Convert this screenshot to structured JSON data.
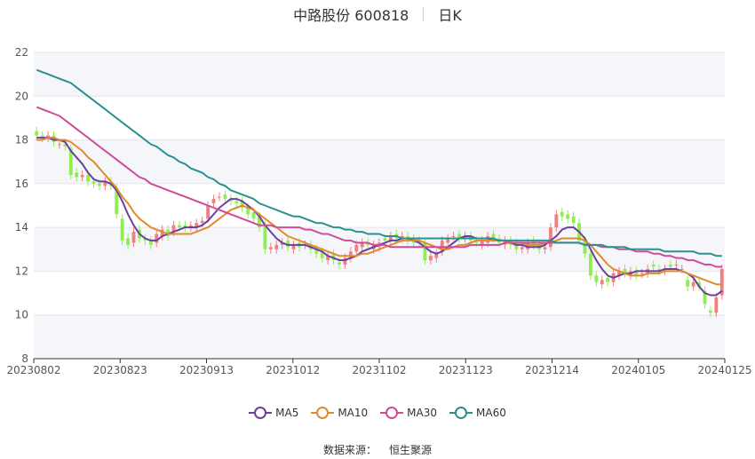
{
  "header": {
    "title": "中路股份 600818",
    "period": "日K"
  },
  "footer": {
    "source_label": "数据来源：",
    "source_name": "恒生聚源"
  },
  "colors": {
    "up": "#f08080",
    "down": "#90ee50",
    "MA5": "#6a3fa0",
    "MA10": "#e08a30",
    "MA30": "#d04a9a",
    "MA60": "#2a9090",
    "grid": "#e6e6e6",
    "band": "#f5f6fa"
  },
  "chart_data": {
    "type": "candlestick",
    "ylim": [
      8,
      22
    ],
    "yticks": [
      8,
      10,
      12,
      14,
      16,
      18,
      20,
      22
    ],
    "xticks": [
      "20230802",
      "20230823",
      "20230913",
      "20231012",
      "20231102",
      "20231123",
      "20231214",
      "20240105",
      "20240125"
    ],
    "xtick_index": [
      0,
      15,
      30,
      45,
      60,
      75,
      90,
      105,
      120
    ],
    "grid": true,
    "legend_position": "bottom",
    "closes": [
      18.2,
      18.1,
      18.2,
      17.9,
      17.8,
      17.7,
      16.4,
      16.3,
      16.4,
      16.1,
      16.0,
      15.9,
      16.1,
      15.9,
      14.6,
      13.4,
      13.2,
      13.8,
      13.5,
      13.4,
      13.2,
      13.7,
      13.9,
      13.6,
      14.1,
      14.0,
      14.0,
      14.1,
      14.2,
      14.3,
      15.0,
      15.3,
      15.4,
      15.3,
      15.2,
      15.1,
      14.9,
      14.6,
      14.4,
      14.0,
      13.0,
      13.1,
      13.2,
      13.3,
      13.1,
      13.2,
      13.1,
      13.2,
      13.0,
      12.8,
      12.6,
      12.7,
      12.5,
      12.3,
      12.6,
      12.9,
      13.2,
      13.3,
      13.2,
      13.2,
      13.3,
      13.4,
      13.6,
      13.5,
      13.6,
      13.4,
      13.3,
      13.3,
      12.5,
      12.7,
      12.8,
      13.4,
      13.5,
      13.6,
      13.5,
      13.6,
      13.4,
      13.3,
      13.4,
      13.6,
      13.5,
      13.3,
      13.4,
      13.2,
      13.0,
      13.1,
      13.3,
      13.2,
      13.0,
      13.1,
      14.0,
      14.6,
      14.5,
      14.4,
      14.2,
      13.4,
      12.8,
      11.8,
      11.5,
      11.6,
      11.5,
      11.9,
      12.0,
      11.9,
      12.0,
      11.8,
      11.9,
      12.1,
      12.2,
      12.0,
      12.1,
      12.2,
      12.3,
      12.1,
      11.3,
      11.5,
      11.3,
      10.5,
      10.1,
      10.8,
      12.1
    ],
    "opens": [
      18.4,
      18.2,
      18.1,
      18.2,
      17.8,
      17.8,
      17.6,
      16.5,
      16.3,
      16.4,
      16.1,
      16.0,
      15.9,
      16.1,
      15.8,
      14.4,
      13.5,
      13.3,
      13.9,
      13.5,
      13.4,
      13.3,
      13.6,
      13.9,
      13.8,
      14.1,
      14.1,
      14.0,
      14.0,
      14.2,
      14.4,
      15.1,
      15.4,
      15.5,
      15.3,
      15.2,
      15.2,
      14.9,
      14.7,
      14.5,
      14.1,
      13.0,
      13.0,
      13.2,
      13.4,
      13.0,
      13.3,
      13.2,
      13.2,
      13.0,
      12.9,
      12.5,
      12.8,
      12.4,
      12.3,
      12.6,
      12.9,
      13.1,
      13.3,
      13.0,
      13.1,
      13.5,
      13.4,
      13.7,
      13.5,
      13.6,
      13.5,
      13.4,
      13.3,
      12.5,
      12.6,
      12.9,
      13.3,
      13.6,
      13.7,
      13.5,
      13.6,
      13.4,
      13.2,
      13.3,
      13.7,
      13.5,
      13.2,
      13.4,
      13.3,
      13.0,
      13.0,
      13.4,
      13.2,
      13.0,
      13.1,
      14.0,
      14.7,
      14.6,
      14.5,
      14.2,
      13.4,
      12.8,
      11.8,
      11.4,
      11.7,
      11.5,
      11.8,
      12.1,
      11.8,
      12.0,
      11.9,
      11.9,
      12.3,
      12.1,
      12.0,
      12.3,
      12.3,
      12.1,
      11.6,
      11.3,
      11.5,
      11.1,
      10.2,
      10.1,
      10.9
    ],
    "series": [
      {
        "name": "MA5",
        "values": [
          18.1,
          18.1,
          18.1,
          18.0,
          18.0,
          17.9,
          17.5,
          17.2,
          16.9,
          16.5,
          16.2,
          16.1,
          16.1,
          16.0,
          15.7,
          15.2,
          14.6,
          14.1,
          13.7,
          13.5,
          13.4,
          13.4,
          13.6,
          13.7,
          13.8,
          13.9,
          14.0,
          14.0,
          14.0,
          14.1,
          14.3,
          14.6,
          14.9,
          15.1,
          15.3,
          15.3,
          15.2,
          15.0,
          14.8,
          14.5,
          14.1,
          13.8,
          13.5,
          13.3,
          13.2,
          13.2,
          13.2,
          13.2,
          13.1,
          13.0,
          12.9,
          12.7,
          12.6,
          12.5,
          12.5,
          12.6,
          12.7,
          12.9,
          13.0,
          13.1,
          13.2,
          13.3,
          13.4,
          13.4,
          13.5,
          13.5,
          13.4,
          13.3,
          13.1,
          12.9,
          12.8,
          12.9,
          13.1,
          13.3,
          13.5,
          13.6,
          13.6,
          13.5,
          13.5,
          13.5,
          13.4,
          13.4,
          13.4,
          13.3,
          13.2,
          13.2,
          13.1,
          13.1,
          13.1,
          13.2,
          13.4,
          13.6,
          13.9,
          14.0,
          14.0,
          13.8,
          13.5,
          13.0,
          12.5,
          12.1,
          11.8,
          11.7,
          11.8,
          11.9,
          11.9,
          12.0,
          12.0,
          12.0,
          12.0,
          12.0,
          12.1,
          12.1,
          12.1,
          12.0,
          11.9,
          11.7,
          11.3,
          11.0,
          10.9,
          10.9,
          11.1
        ]
      },
      {
        "name": "MA10",
        "values": [
          18.0,
          18.0,
          18.1,
          18.1,
          18.0,
          18.0,
          17.9,
          17.7,
          17.5,
          17.2,
          17.0,
          16.7,
          16.4,
          16.1,
          15.8,
          15.4,
          15.1,
          14.7,
          14.4,
          14.2,
          14.0,
          13.9,
          13.8,
          13.7,
          13.7,
          13.7,
          13.7,
          13.7,
          13.8,
          13.9,
          14.0,
          14.2,
          14.4,
          14.6,
          14.8,
          14.9,
          15.0,
          14.9,
          14.8,
          14.6,
          14.4,
          14.2,
          14.0,
          13.8,
          13.6,
          13.5,
          13.4,
          13.3,
          13.2,
          13.1,
          13.0,
          12.9,
          12.8,
          12.7,
          12.7,
          12.7,
          12.7,
          12.8,
          12.8,
          12.9,
          13.0,
          13.1,
          13.2,
          13.3,
          13.4,
          13.4,
          13.4,
          13.4,
          13.3,
          13.2,
          13.1,
          13.0,
          13.0,
          13.1,
          13.2,
          13.2,
          13.3,
          13.4,
          13.4,
          13.4,
          13.4,
          13.4,
          13.4,
          13.3,
          13.3,
          13.3,
          13.2,
          13.2,
          13.2,
          13.3,
          13.3,
          13.4,
          13.5,
          13.5,
          13.5,
          13.5,
          13.4,
          13.2,
          12.9,
          12.6,
          12.3,
          12.1,
          12.0,
          11.9,
          11.8,
          11.8,
          11.8,
          11.9,
          11.9,
          11.9,
          12.0,
          12.0,
          12.0,
          12.0,
          11.9,
          11.8,
          11.7,
          11.6,
          11.5,
          11.4,
          11.4
        ]
      },
      {
        "name": "MA30",
        "values": [
          19.5,
          19.4,
          19.3,
          19.2,
          19.1,
          18.9,
          18.7,
          18.5,
          18.3,
          18.1,
          17.9,
          17.7,
          17.5,
          17.3,
          17.1,
          16.9,
          16.7,
          16.5,
          16.3,
          16.2,
          16.0,
          15.9,
          15.8,
          15.7,
          15.6,
          15.5,
          15.4,
          15.3,
          15.2,
          15.1,
          15.0,
          14.9,
          14.8,
          14.7,
          14.6,
          14.5,
          14.4,
          14.3,
          14.2,
          14.1,
          14.1,
          14.1,
          14.0,
          14.0,
          14.0,
          14.0,
          14.0,
          13.9,
          13.9,
          13.8,
          13.7,
          13.7,
          13.6,
          13.5,
          13.4,
          13.4,
          13.3,
          13.3,
          13.3,
          13.2,
          13.2,
          13.2,
          13.1,
          13.1,
          13.1,
          13.1,
          13.1,
          13.1,
          13.1,
          13.1,
          13.1,
          13.1,
          13.1,
          13.1,
          13.1,
          13.1,
          13.2,
          13.2,
          13.2,
          13.2,
          13.2,
          13.2,
          13.3,
          13.3,
          13.3,
          13.3,
          13.3,
          13.3,
          13.3,
          13.3,
          13.3,
          13.3,
          13.3,
          13.3,
          13.3,
          13.3,
          13.2,
          13.2,
          13.2,
          13.1,
          13.1,
          13.1,
          13.0,
          13.0,
          13.0,
          12.9,
          12.9,
          12.9,
          12.8,
          12.8,
          12.7,
          12.7,
          12.6,
          12.6,
          12.5,
          12.5,
          12.4,
          12.3,
          12.3,
          12.2,
          12.2
        ]
      },
      {
        "name": "MA60",
        "values": [
          21.2,
          21.1,
          21.0,
          20.9,
          20.8,
          20.7,
          20.6,
          20.4,
          20.2,
          20.0,
          19.8,
          19.6,
          19.4,
          19.2,
          19.0,
          18.8,
          18.6,
          18.4,
          18.2,
          18.0,
          17.8,
          17.7,
          17.5,
          17.3,
          17.2,
          17.0,
          16.9,
          16.7,
          16.6,
          16.5,
          16.3,
          16.2,
          16.0,
          15.9,
          15.7,
          15.6,
          15.5,
          15.4,
          15.3,
          15.1,
          15.0,
          14.9,
          14.8,
          14.7,
          14.6,
          14.5,
          14.5,
          14.4,
          14.3,
          14.2,
          14.2,
          14.1,
          14.0,
          14.0,
          13.9,
          13.9,
          13.8,
          13.8,
          13.7,
          13.7,
          13.7,
          13.6,
          13.6,
          13.6,
          13.5,
          13.5,
          13.5,
          13.5,
          13.5,
          13.5,
          13.5,
          13.5,
          13.5,
          13.5,
          13.5,
          13.5,
          13.5,
          13.5,
          13.5,
          13.5,
          13.5,
          13.4,
          13.4,
          13.4,
          13.4,
          13.4,
          13.4,
          13.4,
          13.4,
          13.4,
          13.4,
          13.3,
          13.3,
          13.3,
          13.3,
          13.3,
          13.2,
          13.2,
          13.2,
          13.2,
          13.1,
          13.1,
          13.1,
          13.1,
          13.0,
          13.0,
          13.0,
          13.0,
          13.0,
          13.0,
          12.9,
          12.9,
          12.9,
          12.9,
          12.9,
          12.9,
          12.8,
          12.8,
          12.8,
          12.7,
          12.7
        ]
      }
    ]
  }
}
